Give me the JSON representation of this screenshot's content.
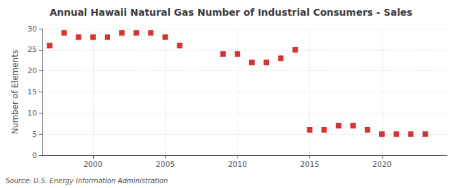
{
  "chart_data": {
    "type": "scatter",
    "title": "Annual Hawaii Natural Gas Number of Industrial Consumers - Sales",
    "ylabel": "Number of Elements",
    "annotation": "Source: U.S. Energy Information Administration",
    "x": [
      1997,
      1998,
      1999,
      2000,
      2001,
      2002,
      2003,
      2004,
      2005,
      2006,
      2009,
      2010,
      2011,
      2012,
      2013,
      2014,
      2015,
      2016,
      2017,
      2018,
      2019,
      2020,
      2021,
      2022,
      2023
    ],
    "values": [
      26,
      29,
      28,
      28,
      28,
      29,
      29,
      29,
      28,
      26,
      24,
      24,
      22,
      22,
      23,
      25,
      6,
      6,
      7,
      7,
      6,
      5,
      5,
      5,
      5
    ],
    "color": "#cc0000",
    "marker": "square",
    "xlim": [
      1996.5,
      2024.5
    ],
    "xticks": [
      2000,
      2005,
      2010,
      2015,
      2020
    ],
    "ylim": [
      0,
      30
    ],
    "yticks": [
      0,
      5,
      10,
      15,
      20,
      25,
      30
    ],
    "grid": true
  }
}
